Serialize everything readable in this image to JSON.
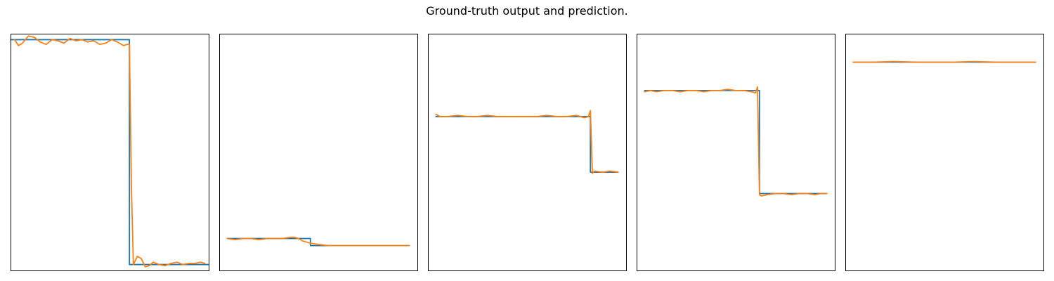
{
  "figure": {
    "title": "Ground-truth output and prediction."
  },
  "colors": {
    "ground_truth": "#1f77b4",
    "prediction": "#ff7f0e",
    "axes_frame": "#000000"
  },
  "chart_data": [
    {
      "type": "line",
      "xlim": [
        0,
        1
      ],
      "ylim": [
        -1.0,
        1.0
      ],
      "grid": false,
      "ticks": "hidden",
      "series": [
        {
          "role": "ground_truth",
          "x": [
            0,
            0.02,
            0.6,
            0.6,
            0.98,
            1.0
          ],
          "y": [
            0.95,
            0.95,
            0.95,
            -0.95,
            -0.95,
            -0.95
          ]
        },
        {
          "role": "prediction",
          "x": [
            0.02,
            0.04,
            0.06,
            0.09,
            0.12,
            0.15,
            0.18,
            0.21,
            0.24,
            0.27,
            0.3,
            0.33,
            0.36,
            0.39,
            0.42,
            0.45,
            0.48,
            0.51,
            0.54,
            0.57,
            0.59,
            0.6,
            0.61,
            0.62,
            0.64,
            0.66,
            0.68,
            0.7,
            0.72,
            0.75,
            0.78,
            0.81,
            0.84,
            0.87,
            0.9,
            0.93,
            0.96,
            0.98
          ],
          "y": [
            0.95,
            0.9,
            0.92,
            0.98,
            0.97,
            0.93,
            0.91,
            0.95,
            0.94,
            0.92,
            0.96,
            0.94,
            0.95,
            0.93,
            0.94,
            0.91,
            0.92,
            0.95,
            0.93,
            0.9,
            0.91,
            0.91,
            -0.3,
            -0.95,
            -0.88,
            -0.9,
            -0.97,
            -0.96,
            -0.93,
            -0.95,
            -0.96,
            -0.94,
            -0.93,
            -0.95,
            -0.94,
            -0.94,
            -0.93,
            -0.94
          ]
        }
      ]
    },
    {
      "type": "line",
      "xlim": [
        0,
        1
      ],
      "ylim": [
        -1.0,
        1.0
      ],
      "grid": false,
      "ticks": "hidden",
      "series": [
        {
          "role": "ground_truth",
          "x": [
            0.04,
            0.46,
            0.46,
            0.96
          ],
          "y": [
            -0.73,
            -0.73,
            -0.79,
            -0.79
          ]
        },
        {
          "role": "prediction",
          "x": [
            0.04,
            0.08,
            0.12,
            0.16,
            0.2,
            0.24,
            0.28,
            0.32,
            0.36,
            0.38,
            0.4,
            0.42,
            0.44,
            0.46,
            0.5,
            0.55,
            0.6,
            0.65,
            0.7,
            0.75,
            0.8,
            0.85,
            0.9,
            0.96
          ],
          "y": [
            -0.73,
            -0.74,
            -0.73,
            -0.73,
            -0.74,
            -0.73,
            -0.73,
            -0.73,
            -0.72,
            -0.72,
            -0.73,
            -0.75,
            -0.76,
            -0.77,
            -0.78,
            -0.79,
            -0.79,
            -0.79,
            -0.79,
            -0.79,
            -0.79,
            -0.79,
            -0.79,
            -0.79
          ]
        }
      ]
    },
    {
      "type": "line",
      "xlim": [
        0,
        1
      ],
      "ylim": [
        -1.0,
        1.0
      ],
      "grid": false,
      "ticks": "hidden",
      "series": [
        {
          "role": "ground_truth",
          "x": [
            0.04,
            0.82,
            0.82,
            0.96
          ],
          "y": [
            0.3,
            0.3,
            -0.17,
            -0.17
          ]
        },
        {
          "role": "prediction",
          "x": [
            0.04,
            0.06,
            0.1,
            0.15,
            0.2,
            0.25,
            0.3,
            0.35,
            0.4,
            0.45,
            0.5,
            0.55,
            0.6,
            0.65,
            0.7,
            0.75,
            0.79,
            0.81,
            0.82,
            0.83,
            0.84,
            0.88,
            0.92,
            0.96
          ],
          "y": [
            0.32,
            0.3,
            0.3,
            0.31,
            0.3,
            0.3,
            0.31,
            0.3,
            0.3,
            0.3,
            0.3,
            0.3,
            0.31,
            0.3,
            0.3,
            0.31,
            0.29,
            0.3,
            0.35,
            -0.18,
            -0.16,
            -0.17,
            -0.16,
            -0.17
          ]
        }
      ]
    },
    {
      "type": "line",
      "xlim": [
        0,
        1
      ],
      "ylim": [
        -1.0,
        1.0
      ],
      "grid": false,
      "ticks": "hidden",
      "series": [
        {
          "role": "ground_truth",
          "x": [
            0.04,
            0.62,
            0.62,
            0.96
          ],
          "y": [
            0.52,
            0.52,
            -0.35,
            -0.35
          ]
        },
        {
          "role": "prediction",
          "x": [
            0.04,
            0.07,
            0.1,
            0.14,
            0.18,
            0.22,
            0.26,
            0.3,
            0.34,
            0.38,
            0.42,
            0.46,
            0.5,
            0.54,
            0.58,
            0.6,
            0.61,
            0.62,
            0.63,
            0.66,
            0.7,
            0.74,
            0.78,
            0.82,
            0.86,
            0.9,
            0.93,
            0.96
          ],
          "y": [
            0.51,
            0.52,
            0.51,
            0.52,
            0.52,
            0.51,
            0.52,
            0.52,
            0.51,
            0.52,
            0.52,
            0.53,
            0.52,
            0.52,
            0.51,
            0.5,
            0.55,
            -0.36,
            -0.37,
            -0.36,
            -0.35,
            -0.35,
            -0.36,
            -0.35,
            -0.35,
            -0.36,
            -0.35,
            -0.35
          ]
        }
      ]
    },
    {
      "type": "line",
      "xlim": [
        0,
        1
      ],
      "ylim": [
        -1.0,
        1.0
      ],
      "grid": false,
      "ticks": "hidden",
      "series": [
        {
          "role": "ground_truth",
          "x": [
            0.04,
            0.96
          ],
          "y": [
            0.76,
            0.76
          ]
        },
        {
          "role": "prediction",
          "x": [
            0.04,
            0.15,
            0.25,
            0.35,
            0.45,
            0.55,
            0.65,
            0.75,
            0.85,
            0.96
          ],
          "y": [
            0.76,
            0.76,
            0.765,
            0.76,
            0.76,
            0.76,
            0.765,
            0.76,
            0.76,
            0.76
          ]
        }
      ]
    }
  ]
}
